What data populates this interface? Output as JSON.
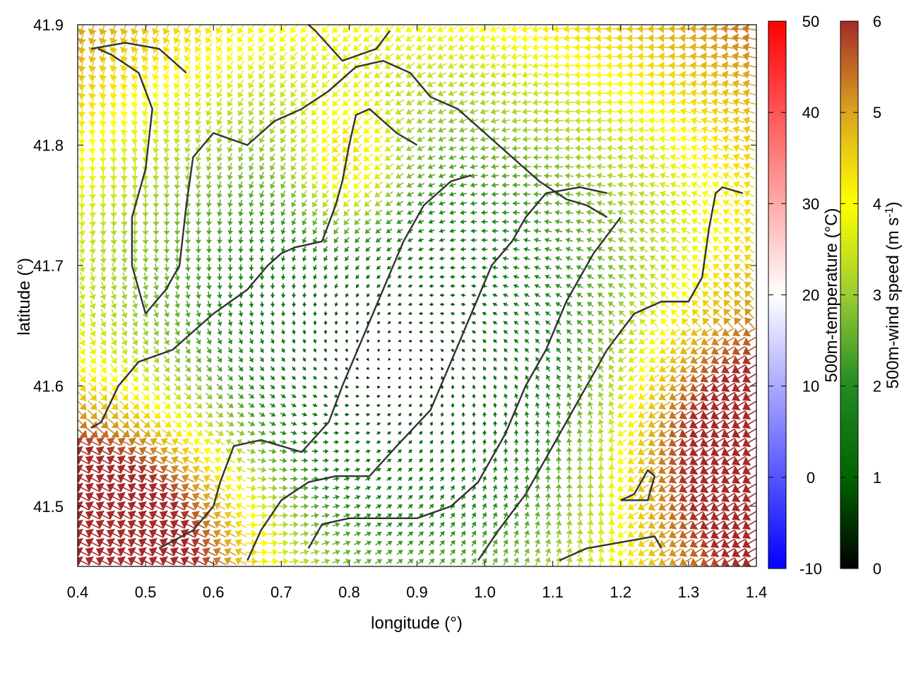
{
  "chart_data": {
    "type": "vector-field",
    "xlabel": "longitude (°)",
    "ylabel": "latitude (°)",
    "xlim": [
      0.4,
      1.4
    ],
    "ylim": [
      41.45,
      41.9
    ],
    "x_ticks": [
      "0.4",
      "0.5",
      "0.6",
      "0.7",
      "0.8",
      "0.9",
      "1.0",
      "1.1",
      "1.2",
      "1.3",
      "1.4"
    ],
    "y_ticks": [
      "41.5",
      "41.6",
      "41.7",
      "41.8",
      "41.9"
    ],
    "colorbars": [
      {
        "label_parts": [
          "500m-temperature (°C)"
        ],
        "range": [
          -10,
          50
        ],
        "ticks": [
          "-10",
          "0",
          "10",
          "20",
          "30",
          "40",
          "50"
        ],
        "colors": [
          "#0000ff",
          "#ffffff",
          "#ff0000"
        ]
      },
      {
        "label_parts": [
          "500m-wind speed (m s",
          "-1",
          ")"
        ],
        "range": [
          0,
          6
        ],
        "ticks": [
          "0",
          "1",
          "2",
          "3",
          "4",
          "5",
          "6"
        ],
        "colors": [
          "#000000",
          "#006400",
          "#228b22",
          "#9acd32",
          "#ffff00",
          "#daa520",
          "#a52a2a"
        ]
      }
    ],
    "wind_field": {
      "grid": "regular lon/lat arrows, speed coded by colour",
      "calm_centre": [
        0.86,
        41.62
      ],
      "strong_wind_areas": [
        "south-west corner",
        "south-east corner"
      ]
    },
    "contours": [
      [
        [
          0.42,
          41.565
        ],
        [
          0.435,
          41.57
        ],
        [
          0.46,
          41.6
        ],
        [
          0.49,
          41.62
        ],
        [
          0.54,
          41.63
        ],
        [
          0.6,
          41.66
        ],
        [
          0.65,
          41.68
        ],
        [
          0.68,
          41.7
        ],
        [
          0.7,
          41.71
        ],
        [
          0.72,
          41.715
        ],
        [
          0.76,
          41.72
        ],
        [
          0.78,
          41.75
        ],
        [
          0.79,
          41.77
        ],
        [
          0.8,
          41.8
        ],
        [
          0.81,
          41.825
        ],
        [
          0.83,
          41.83
        ],
        [
          0.87,
          41.81
        ],
        [
          0.9,
          41.8
        ]
      ],
      [
        [
          0.5,
          41.66
        ],
        [
          0.48,
          41.7
        ],
        [
          0.48,
          41.74
        ],
        [
          0.5,
          41.78
        ],
        [
          0.51,
          41.83
        ],
        [
          0.49,
          41.86
        ],
        [
          0.45,
          41.875
        ],
        [
          0.43,
          41.88
        ]
      ],
      [
        [
          0.5,
          41.66
        ],
        [
          0.53,
          41.68
        ],
        [
          0.55,
          41.7
        ],
        [
          0.56,
          41.75
        ],
        [
          0.57,
          41.79
        ],
        [
          0.6,
          41.81
        ],
        [
          0.65,
          41.8
        ],
        [
          0.69,
          41.82
        ],
        [
          0.73,
          41.83
        ],
        [
          0.77,
          41.845
        ],
        [
          0.81,
          41.865
        ],
        [
          0.85,
          41.87
        ],
        [
          0.89,
          41.86
        ],
        [
          0.92,
          41.84
        ],
        [
          0.96,
          41.83
        ],
        [
          1.0,
          41.81
        ],
        [
          1.04,
          41.79
        ],
        [
          1.08,
          41.77
        ],
        [
          1.12,
          41.755
        ],
        [
          1.15,
          41.75
        ],
        [
          1.18,
          41.74
        ]
      ],
      [
        [
          0.52,
          41.465
        ],
        [
          0.57,
          41.48
        ],
        [
          0.6,
          41.5
        ],
        [
          0.61,
          41.52
        ],
        [
          0.63,
          41.55
        ],
        [
          0.67,
          41.555
        ],
        [
          0.73,
          41.545
        ],
        [
          0.77,
          41.57
        ],
        [
          0.79,
          41.6
        ],
        [
          0.82,
          41.64
        ],
        [
          0.85,
          41.68
        ],
        [
          0.88,
          41.72
        ],
        [
          0.91,
          41.75
        ],
        [
          0.95,
          41.77
        ],
        [
          0.98,
          41.775
        ]
      ],
      [
        [
          0.65,
          41.455
        ],
        [
          0.67,
          41.48
        ],
        [
          0.7,
          41.505
        ],
        [
          0.74,
          41.52
        ],
        [
          0.78,
          41.525
        ],
        [
          0.83,
          41.525
        ],
        [
          0.87,
          41.55
        ],
        [
          0.92,
          41.58
        ],
        [
          0.95,
          41.62
        ],
        [
          0.98,
          41.66
        ],
        [
          1.01,
          41.7
        ],
        [
          1.04,
          41.72
        ],
        [
          1.06,
          41.74
        ],
        [
          1.09,
          41.76
        ],
        [
          1.14,
          41.765
        ],
        [
          1.18,
          41.76
        ]
      ],
      [
        [
          0.74,
          41.465
        ],
        [
          0.76,
          41.485
        ],
        [
          0.8,
          41.49
        ],
        [
          0.85,
          41.49
        ],
        [
          0.9,
          41.49
        ],
        [
          0.95,
          41.5
        ],
        [
          0.99,
          41.52
        ],
        [
          1.03,
          41.56
        ],
        [
          1.06,
          41.6
        ],
        [
          1.09,
          41.63
        ],
        [
          1.12,
          41.67
        ],
        [
          1.16,
          41.71
        ],
        [
          1.2,
          41.74
        ]
      ],
      [
        [
          0.99,
          41.455
        ],
        [
          1.02,
          41.48
        ],
        [
          1.06,
          41.51
        ],
        [
          1.1,
          41.55
        ],
        [
          1.14,
          41.59
        ],
        [
          1.18,
          41.63
        ],
        [
          1.22,
          41.66
        ],
        [
          1.26,
          41.67
        ],
        [
          1.3,
          41.67
        ],
        [
          1.32,
          41.69
        ],
        [
          1.33,
          41.73
        ],
        [
          1.34,
          41.76
        ],
        [
          1.35,
          41.765
        ],
        [
          1.38,
          41.76
        ]
      ],
      [
        [
          1.11,
          41.455
        ],
        [
          1.15,
          41.465
        ],
        [
          1.2,
          41.47
        ],
        [
          1.25,
          41.475
        ],
        [
          1.26,
          41.465
        ]
      ],
      [
        [
          1.2,
          41.505
        ],
        [
          1.24,
          41.505
        ],
        [
          1.25,
          41.525
        ],
        [
          1.24,
          41.53
        ],
        [
          1.22,
          41.51
        ],
        [
          1.2,
          41.505
        ]
      ],
      [
        [
          0.42,
          41.88
        ],
        [
          0.47,
          41.885
        ],
        [
          0.52,
          41.88
        ],
        [
          0.56,
          41.86
        ]
      ],
      [
        [
          0.74,
          41.9
        ],
        [
          0.75,
          41.895
        ],
        [
          0.79,
          41.87
        ],
        [
          0.84,
          41.88
        ],
        [
          0.86,
          41.895
        ]
      ]
    ]
  }
}
